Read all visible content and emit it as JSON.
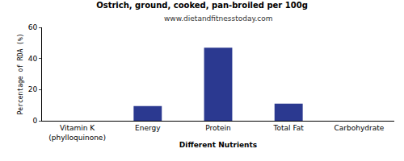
{
  "chart_data": {
    "type": "bar",
    "title": "Ostrich, ground, cooked, pan-broiled per 100g",
    "subtitle": "www.dietandfitnesstoday.com",
    "x_label": "Different Nutrients",
    "y_label": "Percentage of RDA (%)",
    "categories": [
      "Vitamin K (phylloquinone)",
      "Energy",
      "Protein",
      "Total Fat",
      "Carbohydrate"
    ],
    "values": [
      0,
      9.5,
      47,
      11,
      0
    ],
    "color": "#2b3990",
    "ylim": [
      0,
      60
    ],
    "yticks": [
      0,
      20,
      40,
      60
    ],
    "grid": false
  }
}
